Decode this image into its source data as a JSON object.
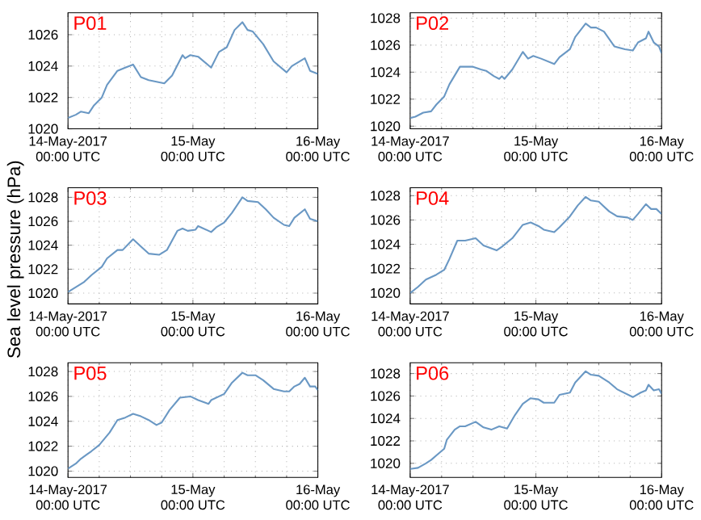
{
  "chart_data": [
    {
      "type": "line",
      "title": "P01",
      "ylabel": "Sea level pressure (hPa)",
      "xlim": [
        "2017-05-14T00:00",
        "2017-05-16T00:00"
      ],
      "xticks": [
        {
          "value": "2017-05-14T00:00",
          "label": "14-May-2017\n00:00 UTC"
        },
        {
          "value": "2017-05-15T00:00",
          "label": "15-May\n00:00 UTC"
        },
        {
          "value": "2017-05-16T00:00",
          "label": "16-May\n00:00 UTC"
        }
      ],
      "ylim": [
        1020,
        1027.4
      ],
      "yticks": [
        1020,
        1022,
        1024,
        1026
      ],
      "grid": true,
      "series": [
        {
          "color": "#6a98c4",
          "x": [
            "2017-05-14T00:00",
            "2017-05-14T01:30",
            "2017-05-14T02:30",
            "2017-05-14T04:00",
            "2017-05-14T05:00",
            "2017-05-14T06:30",
            "2017-05-14T07:30",
            "2017-05-14T09:30",
            "2017-05-14T11:00",
            "2017-05-14T12:30",
            "2017-05-14T14:00",
            "2017-05-14T15:30",
            "2017-05-14T18:30",
            "2017-05-14T20:00",
            "2017-05-14T22:00",
            "2017-05-14T22:30",
            "2017-05-14T23:30",
            "2017-05-15T01:00",
            "2017-05-15T03:30",
            "2017-05-15T05:00",
            "2017-05-15T06:30",
            "2017-05-15T08:00",
            "2017-05-15T09:30",
            "2017-05-15T10:30",
            "2017-05-15T11:30",
            "2017-05-15T13:30",
            "2017-05-15T15:30",
            "2017-05-15T18:00",
            "2017-05-15T19:00",
            "2017-05-15T21:30",
            "2017-05-15T22:30",
            "2017-05-16T00:00"
          ],
          "values": [
            1020.7,
            1020.9,
            1021.1,
            1021.0,
            1021.5,
            1022.0,
            1022.8,
            1023.7,
            1023.9,
            1024.1,
            1023.3,
            1023.1,
            1022.9,
            1023.4,
            1024.7,
            1024.5,
            1024.7,
            1024.6,
            1023.9,
            1024.9,
            1025.2,
            1026.3,
            1026.8,
            1026.3,
            1026.2,
            1025.4,
            1024.3,
            1023.6,
            1024.0,
            1024.5,
            1023.7,
            1023.5
          ]
        }
      ]
    },
    {
      "type": "line",
      "title": "P02",
      "xlim": [
        "2017-05-14T00:00",
        "2017-05-16T00:00"
      ],
      "xticks": [
        {
          "value": "2017-05-14T00:00",
          "label": "14-May-2017\n00:00 UTC"
        },
        {
          "value": "2017-05-15T00:00",
          "label": "15-May\n00:00 UTC"
        },
        {
          "value": "2017-05-16T00:00",
          "label": "16-May\n00:00 UTC"
        }
      ],
      "ylim": [
        1019.8,
        1028.4
      ],
      "yticks": [
        1020,
        1022,
        1024,
        1026,
        1028
      ],
      "grid": true,
      "series": [
        {
          "color": "#6a98c4",
          "x": [
            "2017-05-14T00:00",
            "2017-05-14T01:00",
            "2017-05-14T02:30",
            "2017-05-14T04:00",
            "2017-05-14T05:00",
            "2017-05-14T06:30",
            "2017-05-14T07:30",
            "2017-05-14T09:30",
            "2017-05-14T10:30",
            "2017-05-14T12:00",
            "2017-05-14T13:30",
            "2017-05-14T14:30",
            "2017-05-14T16:00",
            "2017-05-14T17:00",
            "2017-05-14T17:30",
            "2017-05-14T18:00",
            "2017-05-14T19:30",
            "2017-05-14T21:30",
            "2017-05-14T22:30",
            "2017-05-14T23:30",
            "2017-05-15T01:00",
            "2017-05-15T03:30",
            "2017-05-15T04:30",
            "2017-05-15T06:30",
            "2017-05-15T07:30",
            "2017-05-15T09:30",
            "2017-05-15T10:30",
            "2017-05-15T11:30",
            "2017-05-15T13:00",
            "2017-05-15T15:00",
            "2017-05-15T17:00",
            "2017-05-15T18:30",
            "2017-05-15T19:30",
            "2017-05-15T21:00",
            "2017-05-15T21:30",
            "2017-05-15T22:30",
            "2017-05-15T23:30",
            "2017-05-16T00:00"
          ],
          "values": [
            1020.6,
            1020.7,
            1021.0,
            1021.1,
            1021.6,
            1022.2,
            1023.1,
            1024.4,
            1024.4,
            1024.4,
            1024.2,
            1024.1,
            1023.7,
            1023.5,
            1023.7,
            1023.5,
            1024.2,
            1025.5,
            1025.0,
            1025.2,
            1025.0,
            1024.6,
            1025.1,
            1025.7,
            1026.6,
            1027.6,
            1027.3,
            1027.3,
            1027.0,
            1025.9,
            1025.7,
            1025.6,
            1026.2,
            1026.5,
            1027.0,
            1026.2,
            1025.9,
            1025.4
          ]
        }
      ]
    },
    {
      "type": "line",
      "title": "P03",
      "xlim": [
        "2017-05-14T00:00",
        "2017-05-16T00:00"
      ],
      "xticks": [
        {
          "value": "2017-05-14T00:00",
          "label": "14-May-2017\n00:00 UTC"
        },
        {
          "value": "2017-05-15T00:00",
          "label": "15-May\n00:00 UTC"
        },
        {
          "value": "2017-05-16T00:00",
          "label": "16-May\n00:00 UTC"
        }
      ],
      "ylim": [
        1019.1,
        1028.8
      ],
      "yticks": [
        1020,
        1022,
        1024,
        1026,
        1028
      ],
      "grid": true,
      "series": [
        {
          "color": "#6a98c4",
          "x": [
            "2017-05-14T00:00",
            "2017-05-14T01:30",
            "2017-05-14T03:00",
            "2017-05-14T04:30",
            "2017-05-14T06:30",
            "2017-05-14T07:30",
            "2017-05-14T09:30",
            "2017-05-14T10:30",
            "2017-05-14T12:30",
            "2017-05-14T14:00",
            "2017-05-14T15:30",
            "2017-05-14T17:30",
            "2017-05-14T19:00",
            "2017-05-14T21:00",
            "2017-05-14T22:00",
            "2017-05-14T23:00",
            "2017-05-15T00:30",
            "2017-05-15T01:00",
            "2017-05-15T03:30",
            "2017-05-15T04:30",
            "2017-05-15T06:00",
            "2017-05-15T07:30",
            "2017-05-15T09:30",
            "2017-05-15T10:30",
            "2017-05-15T12:30",
            "2017-05-15T14:00",
            "2017-05-15T15:30",
            "2017-05-15T17:30",
            "2017-05-15T18:30",
            "2017-05-15T19:30",
            "2017-05-15T21:30",
            "2017-05-15T22:30",
            "2017-05-16T00:00"
          ],
          "values": [
            1020.1,
            1020.5,
            1020.9,
            1021.5,
            1022.2,
            1022.9,
            1023.6,
            1023.6,
            1024.5,
            1023.9,
            1023.3,
            1023.2,
            1023.6,
            1025.2,
            1025.4,
            1025.2,
            1025.3,
            1025.6,
            1025.1,
            1025.5,
            1025.9,
            1026.7,
            1028.0,
            1027.7,
            1027.6,
            1027.0,
            1026.3,
            1025.7,
            1025.6,
            1026.3,
            1027.0,
            1026.2,
            1026.0
          ]
        }
      ]
    },
    {
      "type": "line",
      "title": "P04",
      "xlim": [
        "2017-05-14T00:00",
        "2017-05-16T00:00"
      ],
      "xticks": [
        {
          "value": "2017-05-14T00:00",
          "label": "14-May-2017\n00:00 UTC"
        },
        {
          "value": "2017-05-15T00:00",
          "label": "15-May\n00:00 UTC"
        },
        {
          "value": "2017-05-16T00:00",
          "label": "16-May\n00:00 UTC"
        }
      ],
      "ylim": [
        1019.1,
        1028.65
      ],
      "yticks": [
        1020,
        1022,
        1024,
        1026,
        1028
      ],
      "grid": true,
      "series": [
        {
          "color": "#6a98c4",
          "x": [
            "2017-05-14T00:00",
            "2017-05-14T01:30",
            "2017-05-14T03:00",
            "2017-05-14T04:00",
            "2017-05-14T05:00",
            "2017-05-14T06:30",
            "2017-05-14T07:30",
            "2017-05-14T09:00",
            "2017-05-14T10:30",
            "2017-05-14T12:30",
            "2017-05-14T14:00",
            "2017-05-14T16:30",
            "2017-05-14T17:30",
            "2017-05-14T19:30",
            "2017-05-14T21:30",
            "2017-05-14T23:00",
            "2017-05-15T00:30",
            "2017-05-15T01:30",
            "2017-05-15T03:30",
            "2017-05-15T04:30",
            "2017-05-15T06:30",
            "2017-05-15T08:00",
            "2017-05-15T09:30",
            "2017-05-15T10:30",
            "2017-05-15T12:00",
            "2017-05-15T14:00",
            "2017-05-15T15:30",
            "2017-05-15T17:30",
            "2017-05-15T18:30",
            "2017-05-15T19:30",
            "2017-05-15T21:00",
            "2017-05-15T22:00",
            "2017-05-15T23:00",
            "2017-05-16T00:00"
          ],
          "values": [
            1020.0,
            1020.5,
            1021.1,
            1021.3,
            1021.5,
            1021.9,
            1022.8,
            1024.3,
            1024.3,
            1024.5,
            1023.9,
            1023.5,
            1023.8,
            1024.5,
            1025.6,
            1025.8,
            1025.5,
            1025.2,
            1025.0,
            1025.4,
            1026.3,
            1027.2,
            1027.9,
            1027.6,
            1027.5,
            1026.7,
            1026.3,
            1026.2,
            1026.0,
            1026.5,
            1027.3,
            1026.9,
            1026.9,
            1026.5
          ]
        }
      ]
    },
    {
      "type": "line",
      "title": "P05",
      "xlim": [
        "2017-05-14T00:00",
        "2017-05-16T00:00"
      ],
      "xticks": [
        {
          "value": "2017-05-14T00:00",
          "label": "14-May-2017\n00:00 UTC"
        },
        {
          "value": "2017-05-15T00:00",
          "label": "15-May\n00:00 UTC"
        },
        {
          "value": "2017-05-16T00:00",
          "label": "16-May\n00:00 UTC"
        }
      ],
      "ylim": [
        1019.5,
        1028.7
      ],
      "yticks": [
        1020,
        1022,
        1024,
        1026,
        1028
      ],
      "grid": true,
      "series": [
        {
          "color": "#6a98c4",
          "x": [
            "2017-05-14T00:00",
            "2017-05-14T01:30",
            "2017-05-14T02:30",
            "2017-05-14T03:30",
            "2017-05-14T04:30",
            "2017-05-14T06:00",
            "2017-05-14T07:00",
            "2017-05-14T08:00",
            "2017-05-14T09:30",
            "2017-05-14T11:00",
            "2017-05-14T12:30",
            "2017-05-14T14:00",
            "2017-05-14T15:30",
            "2017-05-14T17:00",
            "2017-05-14T18:00",
            "2017-05-14T19:30",
            "2017-05-14T21:30",
            "2017-05-14T23:30",
            "2017-05-15T01:00",
            "2017-05-15T03:00",
            "2017-05-15T03:30",
            "2017-05-15T06:00",
            "2017-05-15T07:30",
            "2017-05-15T09:30",
            "2017-05-15T10:30",
            "2017-05-15T12:00",
            "2017-05-15T13:30",
            "2017-05-15T15:30",
            "2017-05-15T17:30",
            "2017-05-15T18:30",
            "2017-05-15T19:30",
            "2017-05-15T20:30",
            "2017-05-15T21:30",
            "2017-05-15T22:30",
            "2017-05-15T23:30",
            "2017-05-16T00:00"
          ],
          "values": [
            1020.2,
            1020.6,
            1021.0,
            1021.3,
            1021.6,
            1022.1,
            1022.6,
            1023.1,
            1024.1,
            1024.3,
            1024.6,
            1024.4,
            1024.1,
            1023.7,
            1023.9,
            1024.9,
            1025.9,
            1026.0,
            1025.7,
            1025.4,
            1025.7,
            1026.2,
            1027.1,
            1027.9,
            1027.7,
            1027.7,
            1027.3,
            1026.6,
            1026.4,
            1026.4,
            1026.8,
            1027.0,
            1027.5,
            1026.8,
            1026.8,
            1026.5
          ]
        }
      ]
    },
    {
      "type": "line",
      "title": "P06",
      "xlim": [
        "2017-05-14T00:00",
        "2017-05-16T00:00"
      ],
      "xticks": [
        {
          "value": "2017-05-14T00:00",
          "label": "14-May-2017\n00:00 UTC"
        },
        {
          "value": "2017-05-15T00:00",
          "label": "15-May\n00:00 UTC"
        },
        {
          "value": "2017-05-16T00:00",
          "label": "16-May\n00:00 UTC"
        }
      ],
      "ylim": [
        1018.75,
        1028.96
      ],
      "yticks": [
        1020,
        1022,
        1024,
        1026,
        1028
      ],
      "grid": true,
      "series": [
        {
          "color": "#6a98c4",
          "x": [
            "2017-05-14T00:00",
            "2017-05-14T01:30",
            "2017-05-14T03:00",
            "2017-05-14T04:00",
            "2017-05-14T05:30",
            "2017-05-14T06:30",
            "2017-05-14T07:00",
            "2017-05-14T08:30",
            "2017-05-14T09:30",
            "2017-05-14T10:30",
            "2017-05-14T12:30",
            "2017-05-14T14:00",
            "2017-05-14T15:30",
            "2017-05-14T17:00",
            "2017-05-14T18:30",
            "2017-05-14T20:00",
            "2017-05-14T21:30",
            "2017-05-14T23:00",
            "2017-05-15T00:30",
            "2017-05-15T01:30",
            "2017-05-15T03:30",
            "2017-05-15T04:30",
            "2017-05-15T06:30",
            "2017-05-15T07:30",
            "2017-05-15T09:30",
            "2017-05-15T10:30",
            "2017-05-15T12:00",
            "2017-05-15T14:00",
            "2017-05-15T15:30",
            "2017-05-15T18:30",
            "2017-05-15T20:00",
            "2017-05-15T21:00",
            "2017-05-15T21:30",
            "2017-05-15T22:30",
            "2017-05-15T23:30",
            "2017-05-16T00:00"
          ],
          "values": [
            1019.5,
            1019.6,
            1020.0,
            1020.3,
            1020.9,
            1021.3,
            1022.1,
            1023.0,
            1023.3,
            1023.3,
            1023.7,
            1023.2,
            1023.0,
            1023.3,
            1023.1,
            1024.3,
            1025.3,
            1025.8,
            1025.7,
            1025.4,
            1025.4,
            1026.1,
            1026.3,
            1027.2,
            1028.2,
            1027.9,
            1027.8,
            1027.2,
            1026.6,
            1025.9,
            1026.3,
            1026.5,
            1027.0,
            1026.5,
            1026.6,
            1026.2
          ]
        }
      ]
    }
  ]
}
